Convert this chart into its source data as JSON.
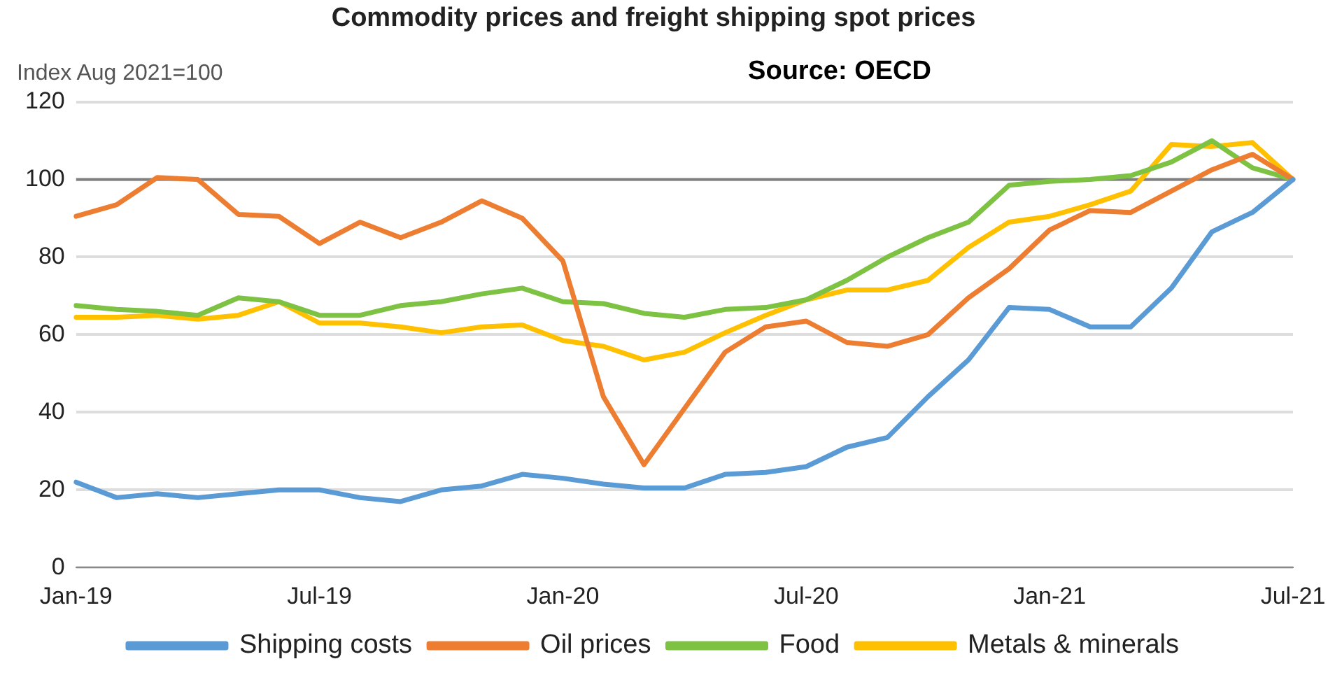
{
  "chart_data": {
    "type": "line",
    "title": "Commodity prices and freight shipping spot prices",
    "ylabel": "Index Aug 2021=100",
    "annotations": [
      "Source: OECD"
    ],
    "categories": [
      "Jan-19",
      null,
      null,
      null,
      null,
      null,
      "Jul-19",
      null,
      null,
      null,
      null,
      null,
      "Jan-20",
      null,
      null,
      null,
      null,
      null,
      "Jul-20",
      null,
      null,
      null,
      null,
      null,
      "Jan-21",
      null,
      null,
      null,
      null,
      null,
      "Jul-21"
    ],
    "series": [
      {
        "name": "Shipping costs",
        "color": "#5b9bd5",
        "values": [
          22,
          18,
          19,
          18,
          19,
          20,
          20,
          18,
          17,
          20,
          21,
          24,
          23,
          21.5,
          20.5,
          20.5,
          24,
          24.5,
          26,
          31,
          33.5,
          44,
          53.5,
          67,
          66.5,
          62,
          62,
          72,
          86.5,
          91.5,
          100
        ]
      },
      {
        "name": "Oil prices",
        "color": "#ed7d31",
        "values": [
          90.5,
          93.5,
          100.5,
          100,
          91,
          90.5,
          83.5,
          89,
          85,
          89,
          94.5,
          90,
          79,
          44,
          26.5,
          41,
          55.5,
          62,
          63.5,
          58,
          57,
          60,
          69.5,
          77,
          87,
          92,
          91.5,
          97,
          102.5,
          106.5,
          100
        ]
      },
      {
        "name": "Food",
        "color": "#7dc242",
        "values": [
          67.5,
          66.5,
          66,
          65,
          69.5,
          68.5,
          65,
          65,
          67.5,
          68.5,
          70.5,
          72,
          68.5,
          68,
          65.5,
          64.5,
          66.5,
          67,
          69,
          74,
          80,
          85,
          89,
          98.5,
          99.5,
          100,
          101,
          104.5,
          110,
          103,
          100
        ]
      },
      {
        "name": "Metals & minerals",
        "color": "#ffc000",
        "values": [
          64.5,
          64.5,
          65,
          64,
          65,
          68.5,
          63,
          63,
          62,
          60.5,
          62,
          62.5,
          58.5,
          57,
          53.5,
          55.5,
          60.5,
          65,
          69,
          71.5,
          71.5,
          74,
          82.5,
          89,
          90.5,
          93.5,
          97,
          109,
          108.5,
          109.5,
          100
        ]
      }
    ],
    "ylim": [
      0,
      120
    ],
    "yticks": [
      0,
      20,
      40,
      60,
      80,
      100,
      120
    ],
    "grid": "y",
    "legend": "bottom",
    "marker": "none",
    "line_style": "solid",
    "ref_lines": [
      {
        "axis": "y",
        "value": 100,
        "color": "#808080"
      }
    ]
  }
}
